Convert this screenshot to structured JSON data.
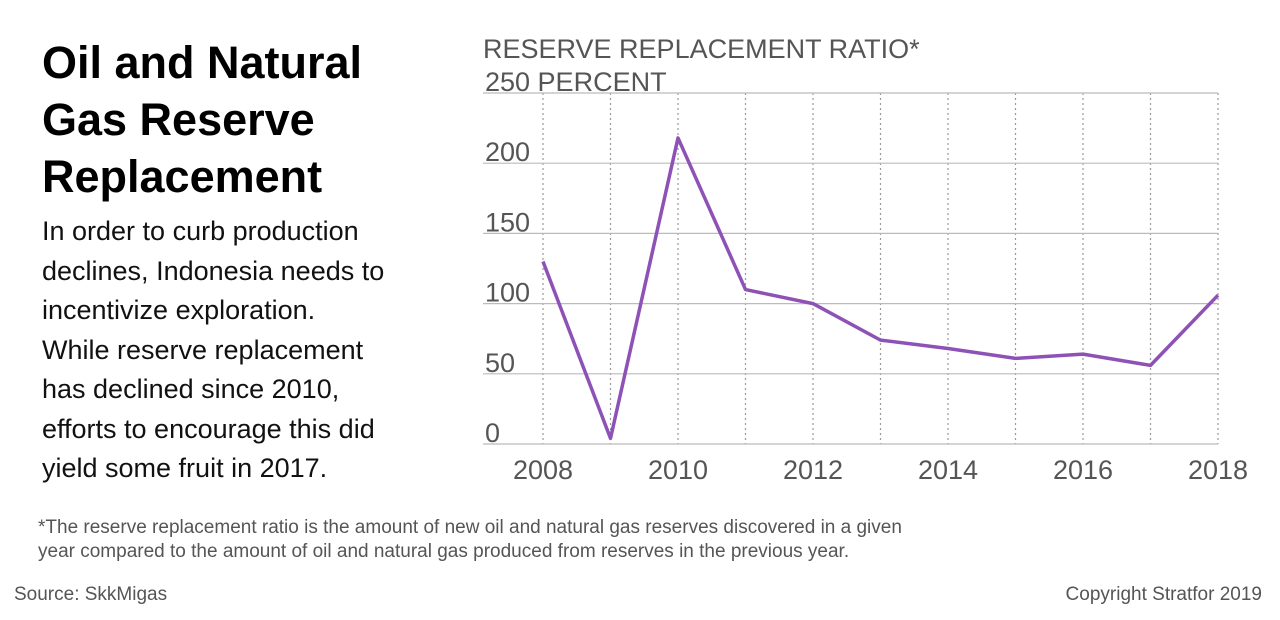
{
  "chart_data": {
    "type": "line",
    "title": "Oil and Natural Gas Reserve Replacement",
    "description": [
      "In order to curb production",
      "declines, Indonesia needs to",
      "incentivize exploration.",
      "While reserve replacement",
      "has declined since 2010,",
      "efforts to encourage this did",
      "yield some fruit in 2017."
    ],
    "y_label": "RESERVE REPLACEMENT RATIO*",
    "footnote": [
      "*The reserve replacement ratio is the amount of new oil and natural gas reserves discovered in a given",
      "year compared to the amount of oil and natural gas produced from reserves in the previous year."
    ],
    "source": "Source: SkkMigas",
    "copyright": "Copyright Stratfor 2019",
    "x": [
      2008,
      2009,
      2010,
      2011,
      2012,
      2013,
      2014,
      2015,
      2016,
      2017,
      2018
    ],
    "series": [
      {
        "name": "Reserve replacement ratio",
        "color": "#8e52b6",
        "values": [
          130,
          4,
          218,
          110,
          100,
          74,
          68,
          61,
          64,
          56,
          106
        ]
      }
    ],
    "xlim": [
      2008,
      2018
    ],
    "xticks": [
      2008,
      2010,
      2012,
      2014,
      2016,
      2018
    ],
    "ylim": [
      0,
      250
    ],
    "yticks": [
      0,
      50,
      100,
      150,
      200,
      {
        "value": 250,
        "label": "250 PERCENT"
      }
    ],
    "grid": true
  }
}
